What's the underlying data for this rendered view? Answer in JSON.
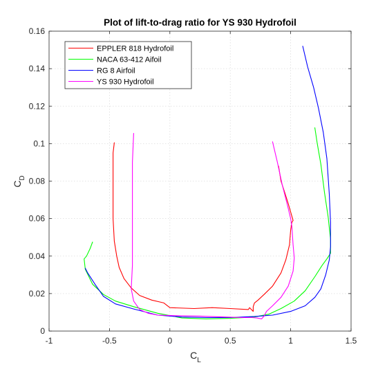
{
  "chart_data": {
    "type": "line",
    "title": "Plot of lift-to-drag ratio for YS 930 Hydrofoil",
    "xlabel": {
      "main": "C",
      "sub": "L"
    },
    "ylabel": {
      "main": "C",
      "sub": "D"
    },
    "xlim": [
      -1,
      1.5
    ],
    "ylim": [
      0,
      0.16
    ],
    "xticks": [
      -1,
      -0.5,
      0,
      0.5,
      1,
      1.5
    ],
    "xtick_labels": [
      "-1",
      "-0.5",
      "0",
      "0.5",
      "1",
      "1.5"
    ],
    "yticks": [
      0,
      0.02,
      0.04,
      0.06,
      0.08,
      0.1,
      0.12,
      0.14,
      0.16
    ],
    "ytick_labels": [
      "0",
      "0.02",
      "0.04",
      "0.06",
      "0.08",
      "0.1",
      "0.12",
      "0.14",
      "0.16"
    ],
    "grid": true,
    "legend_position": "top-left",
    "series": [
      {
        "name": "EPPLER 818 Hydrofoil",
        "color": "#ff0000",
        "x": [
          -0.46,
          -0.47,
          -0.47,
          -0.47,
          -0.46,
          -0.44,
          -0.42,
          -0.38,
          -0.32,
          -0.25,
          -0.15,
          -0.08,
          -0.05,
          0.0,
          0.2,
          0.35,
          0.5,
          0.65,
          0.66,
          0.69,
          0.69,
          0.7,
          0.73,
          0.78,
          0.85,
          0.92,
          0.96,
          0.99,
          1.0,
          1.01,
          1.02,
          1.0,
          0.98,
          0.95,
          0.92,
          0.9
        ],
        "y": [
          0.1005,
          0.095,
          0.08,
          0.06,
          0.048,
          0.04,
          0.034,
          0.028,
          0.023,
          0.019,
          0.0165,
          0.0155,
          0.015,
          0.0125,
          0.012,
          0.0125,
          0.012,
          0.0115,
          0.0125,
          0.0105,
          0.013,
          0.015,
          0.0165,
          0.0195,
          0.024,
          0.031,
          0.038,
          0.046,
          0.054,
          0.058,
          0.059,
          0.0635,
          0.068,
          0.074,
          0.08,
          0.088
        ]
      },
      {
        "name": "NACA 63-412 Aifoil",
        "color": "#00ff00",
        "x": [
          -0.64,
          -0.66,
          -0.69,
          -0.71,
          -0.7,
          -0.64,
          -0.55,
          -0.45,
          -0.3,
          -0.1,
          0.1,
          0.3,
          0.5,
          0.7,
          0.82,
          0.92,
          1.03,
          1.12,
          1.2,
          1.26,
          1.3,
          1.33,
          1.33,
          1.31,
          1.28,
          1.25,
          1.22,
          1.2
        ],
        "y": [
          0.0475,
          0.044,
          0.04,
          0.0385,
          0.033,
          0.025,
          0.0195,
          0.016,
          0.013,
          0.0095,
          0.007,
          0.0065,
          0.0068,
          0.0075,
          0.009,
          0.012,
          0.016,
          0.0215,
          0.029,
          0.035,
          0.0385,
          0.0415,
          0.049,
          0.061,
          0.074,
          0.089,
          0.1,
          0.1085
        ]
      },
      {
        "name": "RG 8 Airfoil",
        "color": "#0000ff",
        "x": [
          -0.7,
          -0.68,
          -0.62,
          -0.55,
          -0.45,
          -0.3,
          -0.1,
          0.1,
          0.3,
          0.5,
          0.7,
          0.85,
          1.0,
          1.12,
          1.2,
          1.25,
          1.29,
          1.32,
          1.33,
          1.33,
          1.32,
          1.3,
          1.27,
          1.23,
          1.19,
          1.14,
          1.1
        ],
        "y": [
          0.0335,
          0.031,
          0.025,
          0.0185,
          0.0145,
          0.0118,
          0.0085,
          0.0075,
          0.0072,
          0.0072,
          0.0078,
          0.0085,
          0.0105,
          0.0135,
          0.018,
          0.0225,
          0.03,
          0.038,
          0.045,
          0.058,
          0.073,
          0.092,
          0.106,
          0.119,
          0.13,
          0.141,
          0.152
        ]
      },
      {
        "name": "YS 930 Hydrofoil",
        "color": "#ff00ff",
        "x": [
          -0.3,
          -0.31,
          -0.31,
          -0.31,
          -0.32,
          -0.3,
          -0.25,
          -0.18,
          -0.1,
          0.05,
          0.25,
          0.45,
          0.6,
          0.68,
          0.72,
          0.76,
          0.78,
          0.8,
          0.85,
          0.92,
          0.98,
          1.02,
          1.03,
          1.02,
          1.01,
          1.0,
          0.97,
          0.93,
          0.89,
          0.85
        ],
        "y": [
          0.1055,
          0.09,
          0.06,
          0.035,
          0.0225,
          0.016,
          0.0115,
          0.0095,
          0.0085,
          0.0082,
          0.008,
          0.0075,
          0.0072,
          0.0072,
          0.007,
          0.0065,
          0.008,
          0.0105,
          0.0135,
          0.018,
          0.024,
          0.032,
          0.039,
          0.046,
          0.056,
          0.06,
          0.068,
          0.078,
          0.09,
          0.101
        ]
      }
    ]
  }
}
